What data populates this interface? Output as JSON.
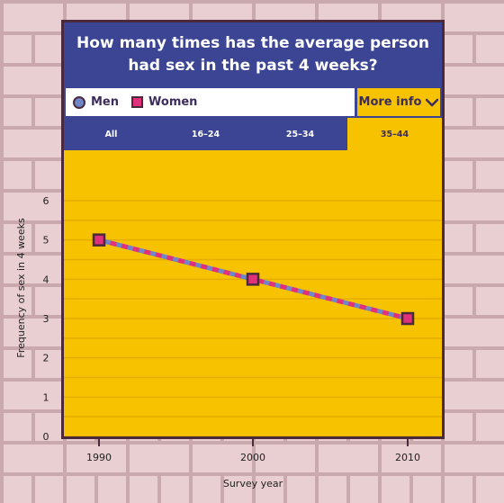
{
  "title": "How many times has the average person had sex in the past 4 weeks?",
  "legend": {
    "men": "Men",
    "women": "Women"
  },
  "more_info_label": "More info",
  "tabs": [
    {
      "label": "All",
      "active": false
    },
    {
      "label": "16–24",
      "active": false
    },
    {
      "label": "25–34",
      "active": false
    },
    {
      "label": "35–44",
      "active": true
    }
  ],
  "colors": {
    "men": "#6f86c9",
    "women": "#e0317a",
    "plot_bg": "#f7c200",
    "header": "#3c4594"
  },
  "chart_data": {
    "type": "line",
    "x": [
      "1990",
      "2000",
      "2010"
    ],
    "series": [
      {
        "name": "Men",
        "values": [
          5,
          4,
          3
        ]
      },
      {
        "name": "Women",
        "values": [
          5,
          4,
          3
        ]
      }
    ],
    "xlabel": "Survey year",
    "ylabel": "Frequency of sex in 4 weeks",
    "ylim": [
      0,
      6
    ],
    "yticks": [
      "0",
      "1",
      "2",
      "3",
      "4",
      "5",
      "6"
    ],
    "grid": true,
    "legend_position": "top-left"
  }
}
